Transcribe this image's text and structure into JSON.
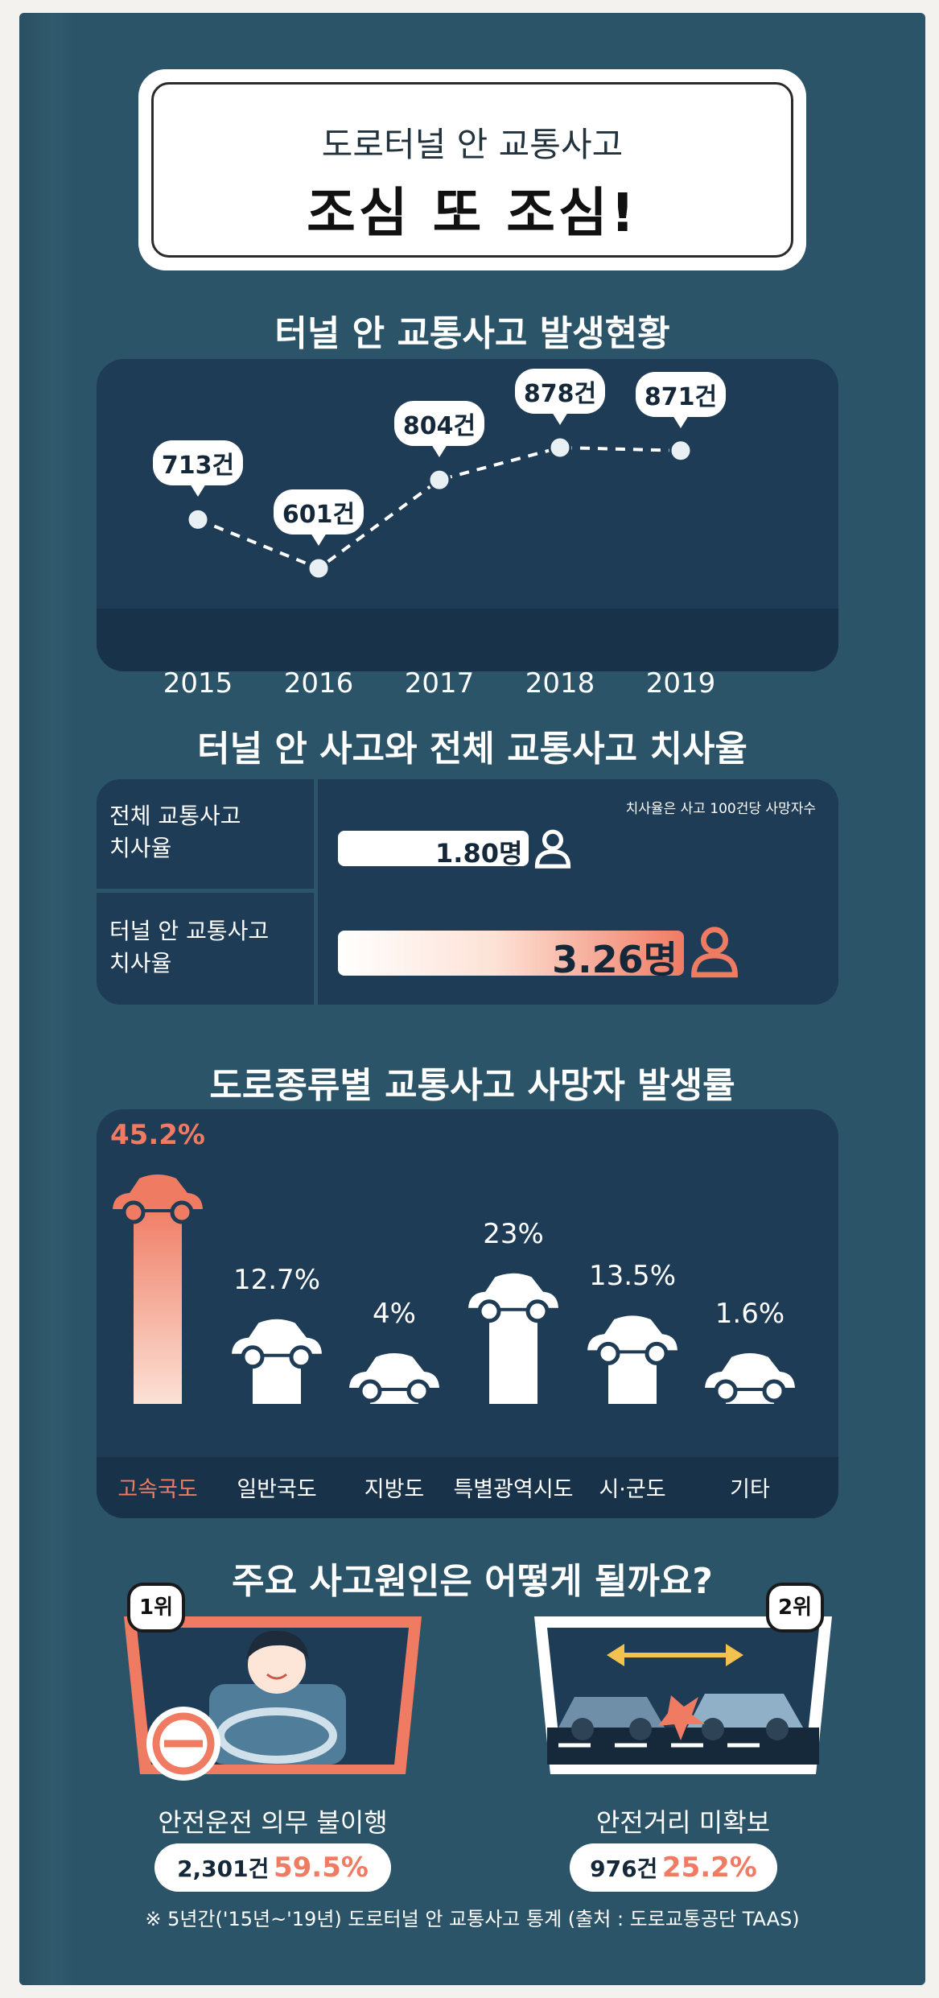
{
  "header": {
    "subtitle": "도로터널 안 교통사고",
    "title": "조심 또 조심!"
  },
  "section1": {
    "title": "터널 안 교통사고 발생현황"
  },
  "section2": {
    "title": "터널 안 사고와 전체 교통사고 치사율",
    "note": "치사율은 사고 100건당 사망자수",
    "rows": [
      {
        "label1": "전체 교통사고",
        "label2": "치사율",
        "value": "1.80명"
      },
      {
        "label1": "터널 안 교통사고",
        "label2": "치사율",
        "value": "3.26명"
      }
    ]
  },
  "section3": {
    "title": "도로종류별 교통사고 사망자 발생률"
  },
  "section4": {
    "title": "주요 사고원인은 어떻게 될까요?",
    "causes": [
      {
        "rank": "1위",
        "label": "안전운전 의무 불이행",
        "count": "2,301건",
        "pct": "59.5%"
      },
      {
        "rank": "2위",
        "label": "안전거리 미확보",
        "count": "976건",
        "pct": "25.2%"
      }
    ]
  },
  "footnote": "※ 5년간('15년~'19년) 도로터널 안 교통사고 통계 (출처 : 도로교통공단 TAAS)",
  "colors": {
    "background": "#2b5468",
    "panel": "#1e3c55",
    "accent": "#f07b63",
    "bar": "#ffffff"
  },
  "chart_data": [
    {
      "type": "line",
      "title": "터널 안 교통사고 발생현황",
      "x": [
        "2015",
        "2016",
        "2017",
        "2018",
        "2019"
      ],
      "series": [
        {
          "values": [
            713,
            601,
            804,
            878,
            871
          ]
        }
      ],
      "data_labels": [
        "713건",
        "601건",
        "804건",
        "878건",
        "871건"
      ],
      "line_style": "dashed"
    },
    {
      "type": "bar",
      "title": "터널 안 사고와 전체 교통사고 치사율",
      "categories": [
        "전체 교통사고 치사율",
        "터널 안 교통사고 치사율"
      ],
      "values": [
        1.8,
        3.26
      ],
      "unit": "명"
    },
    {
      "type": "bar",
      "title": "도로종류별 교통사고 사망자 발생률",
      "categories": [
        "고속국도",
        "일반국도",
        "지방도",
        "특별광역시도",
        "시·군도",
        "기타"
      ],
      "values": [
        45.2,
        12.7,
        4,
        23,
        13.5,
        1.6
      ],
      "data_labels": [
        "45.2%",
        "12.7%",
        "4%",
        "23%",
        "13.5%",
        "1.6%"
      ],
      "highlight": "고속국도"
    }
  ]
}
